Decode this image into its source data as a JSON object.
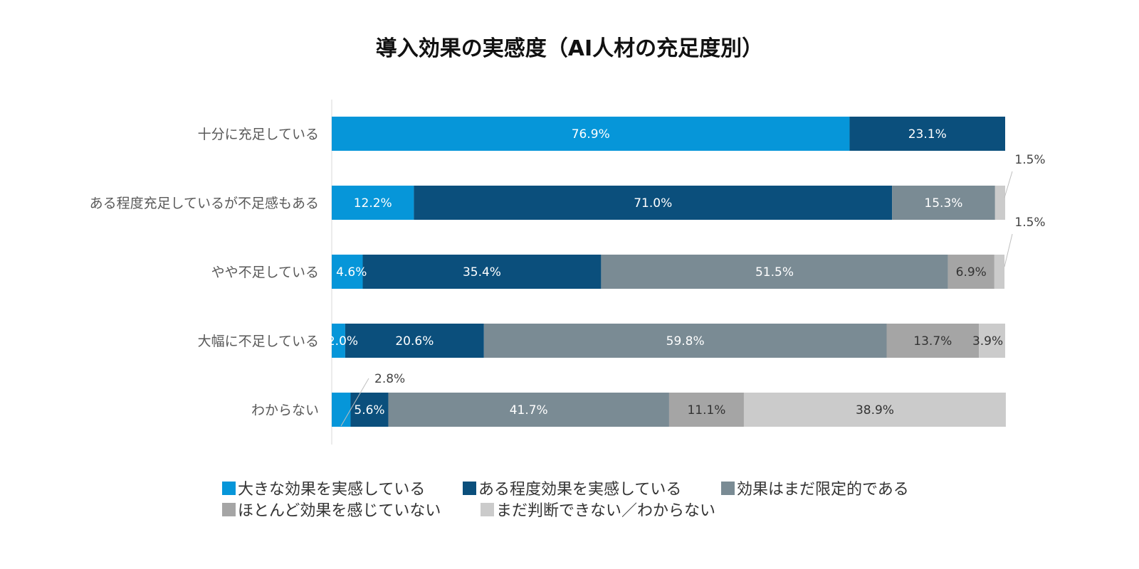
{
  "chart_data": {
    "type": "bar",
    "orientation": "horizontal",
    "stacked": true,
    "title": "導入効果の実感度（AI人材の充足度別）",
    "xlabel": "",
    "ylabel": "",
    "xlim": [
      0,
      100
    ],
    "grid": false,
    "legend_position": "bottom",
    "categories": [
      "十分に充足している",
      "ある程度充足しているが不足感もある",
      "やや不足している",
      "大幅に不足している",
      "わからない"
    ],
    "series": [
      {
        "name": "大きな効果を実感している",
        "color": "#0696d9",
        "values": [
          76.9,
          12.2,
          4.6,
          2.0,
          2.8
        ],
        "label_color": "#ffffff"
      },
      {
        "name": "ある程度効果を実感している",
        "color": "#0b4f7c",
        "values": [
          23.1,
          71.0,
          35.4,
          20.6,
          5.6
        ],
        "label_color": "#ffffff"
      },
      {
        "name": "効果はまだ限定的である",
        "color": "#7a8b94",
        "values": [
          0,
          15.3,
          51.5,
          59.8,
          41.7
        ],
        "label_color": "#ffffff"
      },
      {
        "name": "ほとんど効果を感じていない",
        "color": "#a5a5a5",
        "values": [
          0,
          0,
          6.9,
          13.7,
          11.1
        ],
        "label_color": "#333333"
      },
      {
        "name": "まだ判断できない／わからない",
        "color": "#cbcbcb",
        "values": [
          0,
          1.5,
          1.5,
          3.9,
          38.9
        ],
        "label_color": "#333333"
      }
    ],
    "data_labels": [
      [
        "76.9%",
        "23.1%",
        "",
        "",
        ""
      ],
      [
        "12.2%",
        "71.0%",
        "15.3%",
        "",
        "1.5%"
      ],
      [
        "4.6%",
        "35.4%",
        "51.5%",
        "6.9%",
        "1.5%"
      ],
      [
        "2.0%",
        "20.6%",
        "59.8%",
        "13.7%",
        "3.9%"
      ],
      [
        "2.8%",
        "5.6%",
        "41.7%",
        "11.1%",
        "38.9%"
      ]
    ]
  }
}
